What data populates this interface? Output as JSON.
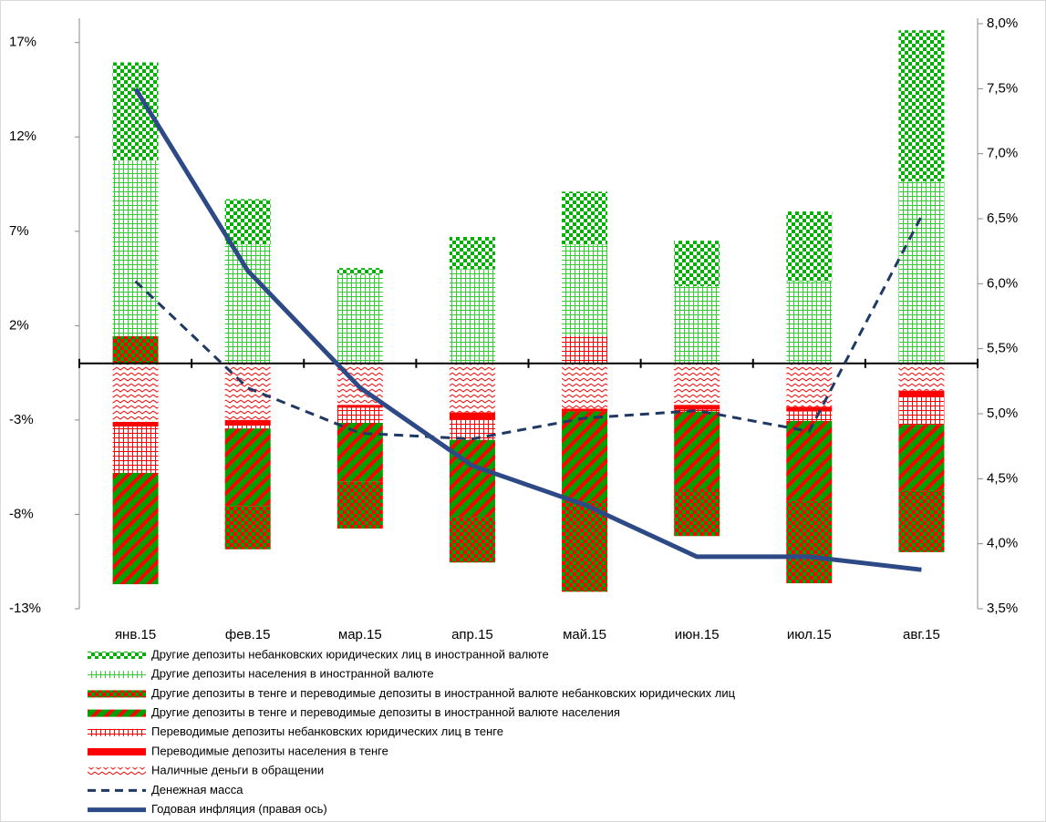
{
  "chart_data": {
    "type": "bar",
    "categories": [
      "янв.15",
      "фев.15",
      "мар.15",
      "апр.15",
      "май.15",
      "июн.15",
      "июл.15",
      "авг.15"
    ],
    "ylim": [
      -13,
      18
    ],
    "yticks": [
      {
        "value": -13,
        "label": "-13%"
      },
      {
        "value": -8,
        "label": "-8%"
      },
      {
        "value": -3,
        "label": "-3%"
      },
      {
        "value": 2,
        "label": "2%"
      },
      {
        "value": 7,
        "label": "7%"
      },
      {
        "value": 12,
        "label": "12%"
      },
      {
        "value": 17,
        "label": "17%"
      }
    ],
    "y2lim": [
      3.5,
      8.0
    ],
    "y2ticks": [
      {
        "value": 3.5,
        "label": "3,5%"
      },
      {
        "value": 4.0,
        "label": "4,0%"
      },
      {
        "value": 4.5,
        "label": "4,5%"
      },
      {
        "value": 5.0,
        "label": "5,0%"
      },
      {
        "value": 5.5,
        "label": "5,5%"
      },
      {
        "value": 6.0,
        "label": "6,0%"
      },
      {
        "value": 6.5,
        "label": "6,5%"
      },
      {
        "value": 7.0,
        "label": "7,0%"
      },
      {
        "value": 7.5,
        "label": "7,5%"
      },
      {
        "value": 8.0,
        "label": "8,0%"
      }
    ],
    "legend": "bottom",
    "series": [
      {
        "name": "Другие депозиты небанковских юридических лиц в иностранной валюте",
        "pattern": "checker",
        "color": "#00b000",
        "pattern_color": "#ffffff",
        "values": [
          5.2,
          2.4,
          0.35,
          1.7,
          2.8,
          2.4,
          3.7,
          8.0
        ]
      },
      {
        "name": "Другие депозиты населения в иностранной валюте",
        "pattern": "grid",
        "color": "#33cc33",
        "pattern_color": "#ffffff",
        "values": [
          9.3,
          6.3,
          4.7,
          5.0,
          4.85,
          4.1,
          4.35,
          9.65
        ]
      },
      {
        "name": "Другие депозиты в тенге и переводимые депозиты в иностранной валюте небанковских юридических лиц",
        "pattern": "checker",
        "color": "#ff0000",
        "pattern_color": "#00a000",
        "values": [
          1.45,
          -2.3,
          -2.5,
          -2.4,
          -4.8,
          -2.5,
          -4.35,
          -3.25
        ]
      },
      {
        "name": "Другие депозиты в тенге и переводимые депозиты в иностранной валюте населения",
        "pattern": "diagonal",
        "color": "#00a000",
        "pattern_color": "#ff0000",
        "values": [
          -5.9,
          -4.1,
          -3.1,
          -4.1,
          -4.75,
          -4.1,
          -4.25,
          -3.5
        ]
      },
      {
        "name": "Переводимые депозиты небанковских юридических лиц в тенге",
        "pattern": "grid",
        "color": "#ff0000",
        "pattern_color": "#ffffff",
        "values": [
          -2.45,
          -0.15,
          -0.8,
          -1.05,
          1.45,
          -0.1,
          -0.5,
          -1.5
        ]
      },
      {
        "name": "Переводимые депозиты населения в тенге",
        "pattern": "solid",
        "color": "#ff0000",
        "pattern_color": "#ff0000",
        "values": [
          -0.25,
          -0.3,
          -0.15,
          -0.4,
          -0.15,
          -0.25,
          -0.25,
          -0.3
        ]
      },
      {
        "name": "Наличные деньги в обращении",
        "pattern": "zigzag",
        "color": "#ff0000",
        "pattern_color": "#ffffff",
        "values": [
          -3.1,
          -3.0,
          -2.2,
          -2.6,
          -2.4,
          -2.2,
          -2.3,
          -1.45
        ]
      },
      {
        "name": "Денежная масса",
        "type": "line",
        "line_style": "dashed",
        "color": "#1f3864",
        "values": [
          4.35,
          -1.3,
          -3.7,
          -4.0,
          -2.9,
          -2.5,
          -3.6,
          7.8
        ]
      },
      {
        "name": "Годовая инфляция (правая ось)",
        "type": "line",
        "line_style": "solid",
        "axis": "y2",
        "color": "#2e4a86",
        "values": [
          7.5,
          6.1,
          5.2,
          4.6,
          4.3,
          3.9,
          3.9,
          3.8
        ]
      }
    ]
  }
}
